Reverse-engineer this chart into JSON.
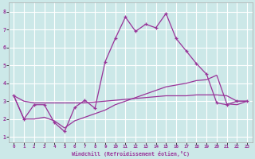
{
  "xlabel": "Windchill (Refroidissement éolien,°C)",
  "background_color": "#cce8e8",
  "grid_color": "#ffffff",
  "line_color": "#993399",
  "xlim_min": -0.5,
  "xlim_max": 23.5,
  "ylim_min": 0.7,
  "ylim_max": 8.5,
  "xticks": [
    0,
    1,
    2,
    3,
    4,
    5,
    6,
    7,
    8,
    9,
    10,
    11,
    12,
    13,
    14,
    15,
    16,
    17,
    18,
    19,
    20,
    21,
    22,
    23
  ],
  "yticks": [
    1,
    2,
    3,
    4,
    5,
    6,
    7,
    8
  ],
  "line1_x": [
    0,
    1,
    2,
    3,
    4,
    5,
    6,
    7,
    8,
    9,
    10,
    11,
    12,
    13,
    14,
    15,
    16,
    17,
    18,
    19,
    20,
    21,
    22,
    23
  ],
  "line1_y": [
    3.3,
    2.0,
    2.8,
    2.8,
    1.8,
    1.3,
    2.65,
    3.05,
    2.6,
    5.2,
    6.5,
    7.7,
    6.9,
    7.3,
    7.1,
    7.9,
    6.5,
    5.8,
    5.1,
    4.5,
    2.9,
    2.8,
    3.0,
    3.0
  ],
  "line2_x": [
    0,
    1,
    2,
    3,
    4,
    5,
    6,
    7,
    8,
    9,
    10,
    11,
    12,
    13,
    14,
    15,
    16,
    17,
    18,
    19,
    20,
    21,
    22,
    23
  ],
  "line2_y": [
    3.3,
    3.0,
    2.9,
    2.9,
    2.9,
    2.9,
    2.9,
    2.9,
    2.95,
    3.0,
    3.05,
    3.1,
    3.15,
    3.2,
    3.25,
    3.3,
    3.3,
    3.3,
    3.35,
    3.35,
    3.35,
    3.3,
    3.0,
    3.0
  ],
  "line3_x": [
    0,
    1,
    2,
    3,
    4,
    5,
    6,
    7,
    8,
    9,
    10,
    11,
    12,
    13,
    14,
    15,
    16,
    17,
    18,
    19,
    20,
    21,
    22,
    23
  ],
  "line3_y": [
    3.3,
    2.0,
    2.0,
    2.1,
    1.9,
    1.5,
    1.9,
    2.1,
    2.3,
    2.5,
    2.8,
    3.0,
    3.2,
    3.4,
    3.6,
    3.8,
    3.9,
    4.0,
    4.15,
    4.2,
    4.45,
    2.85,
    2.8,
    3.0
  ]
}
